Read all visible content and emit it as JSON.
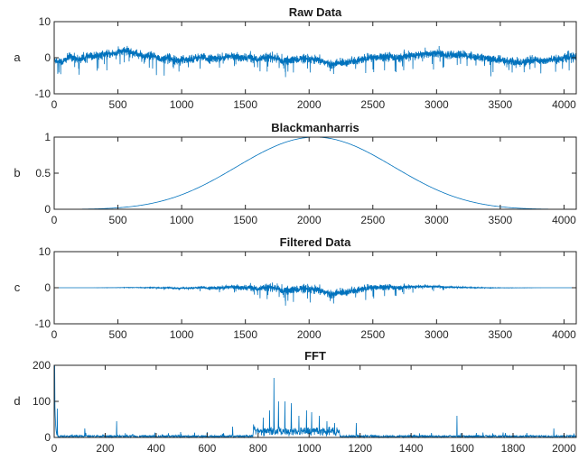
{
  "figure": {
    "line_color": "#0072bd"
  },
  "chart_data": [
    {
      "type": "line",
      "title": "Raw Data",
      "ylabel": "a",
      "xlim": [
        0,
        4096
      ],
      "ylim": [
        -10,
        10
      ],
      "xticks": [
        "0",
        "500",
        "1000",
        "1500",
        "2000",
        "2500",
        "3000",
        "3500",
        "4000"
      ],
      "yticks": [
        "10",
        "0",
        "-10"
      ],
      "xtick_values": [
        0,
        500,
        1000,
        1500,
        2000,
        2500,
        3000,
        3500,
        4000
      ],
      "ytick_values": [
        10,
        0,
        -10
      ],
      "signal": "noisy slow wave around 0, amplitude about 1 to 5",
      "series": [
        {
          "values_sampled_every_64": [
            -0.6,
            -1.2,
            0.4,
            -0.5,
            0.2,
            0.5,
            0.9,
            1.0,
            1.6,
            2.0,
            1.1,
            0.3,
            0.6,
            -0.4,
            0.2,
            -0.8,
            -0.5,
            -0.2,
            0.1,
            -0.3,
            -0.1,
            0.2,
            0.4,
            -0.2,
            0.1,
            -0.4,
            0.3,
            0.0,
            -0.9,
            -0.8,
            -0.3,
            -0.5,
            -0.6,
            -1.0,
            -2.1,
            -1.4,
            -1.2,
            -0.9,
            -0.4,
            0.1,
            0.3,
            0.5,
            -0.1,
            0.2,
            0.6,
            0.9,
            1.1,
            1.4,
            0.8,
            0.6,
            0.9,
            0.4,
            0.1,
            -0.2,
            -0.5,
            -0.8,
            -1.1,
            -1.4,
            -0.9,
            -0.6,
            -0.9,
            -0.6,
            -0.3,
            0.2
          ]
        }
      ]
    },
    {
      "type": "line",
      "title": "Blackmanharris",
      "ylabel": "b",
      "xlim": [
        0,
        4096
      ],
      "ylim": [
        0,
        1
      ],
      "xticks": [
        "0",
        "500",
        "1000",
        "1500",
        "2000",
        "2500",
        "3000",
        "3500",
        "4000"
      ],
      "yticks": [
        "1",
        "0.5",
        "0"
      ],
      "xtick_values": [
        0,
        500,
        1000,
        1500,
        2000,
        2500,
        3000,
        3500,
        4000
      ],
      "ytick_values": [
        1,
        0.5,
        0
      ],
      "series": [
        {
          "window": "blackmanharris",
          "N": 4096,
          "peak_x": 2048,
          "peak_y": 1
        }
      ]
    },
    {
      "type": "line",
      "title": "Filtered Data",
      "ylabel": "c",
      "xlim": [
        0,
        4096
      ],
      "ylim": [
        -10,
        10
      ],
      "xticks": [
        "0",
        "500",
        "1000",
        "1500",
        "2000",
        "2500",
        "3000",
        "3500",
        "4000"
      ],
      "yticks": [
        "10",
        "0",
        "-10"
      ],
      "xtick_values": [
        0,
        500,
        1000,
        1500,
        2000,
        2500,
        3000,
        3500,
        4000
      ],
      "ytick_values": [
        10,
        0,
        -10
      ],
      "series": [
        {
          "description": "raw data multiplied by window; largest excursion about -5 near x=2300"
        }
      ]
    },
    {
      "type": "line",
      "title": "FFT",
      "ylabel": "d",
      "xlim": [
        0,
        2048
      ],
      "ylim": [
        0,
        200
      ],
      "xticks": [
        "0",
        "200",
        "400",
        "600",
        "800",
        "1000",
        "1200",
        "1400",
        "1600",
        "1800",
        "2000"
      ],
      "yticks": [
        "200",
        "100",
        "0"
      ],
      "xtick_values": [
        0,
        200,
        400,
        600,
        800,
        1000,
        1200,
        1400,
        1600,
        1800,
        2000
      ],
      "ytick_values": [
        200,
        100,
        0
      ],
      "series": [
        {
          "baseline": 6,
          "peaks": [
            {
              "x": 2,
              "y": 200
            },
            {
              "x": 12,
              "y": 80
            },
            {
              "x": 120,
              "y": 25
            },
            {
              "x": 245,
              "y": 45
            },
            {
              "x": 600,
              "y": 15
            },
            {
              "x": 700,
              "y": 30
            },
            {
              "x": 820,
              "y": 55
            },
            {
              "x": 845,
              "y": 75
            },
            {
              "x": 862,
              "y": 165
            },
            {
              "x": 880,
              "y": 100
            },
            {
              "x": 905,
              "y": 100
            },
            {
              "x": 930,
              "y": 95
            },
            {
              "x": 960,
              "y": 60
            },
            {
              "x": 990,
              "y": 75
            },
            {
              "x": 1010,
              "y": 70
            },
            {
              "x": 1040,
              "y": 60
            },
            {
              "x": 1070,
              "y": 45
            },
            {
              "x": 1100,
              "y": 40
            },
            {
              "x": 1185,
              "y": 40
            },
            {
              "x": 1580,
              "y": 60
            },
            {
              "x": 1960,
              "y": 25
            }
          ]
        }
      ]
    }
  ]
}
